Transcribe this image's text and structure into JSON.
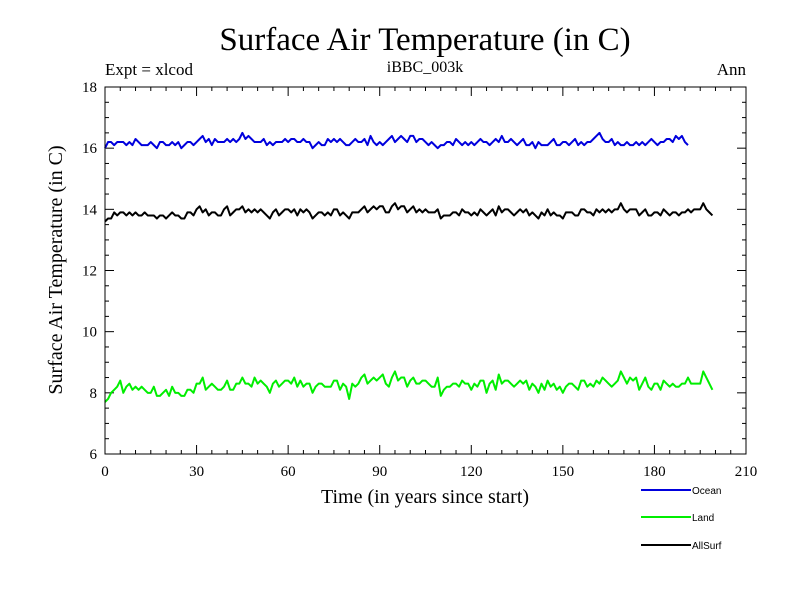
{
  "chart_data": {
    "type": "line",
    "title": "Surface Air Temperature (in C)",
    "subtitle": "iBBC_003k",
    "header_left": "Expt = xlcod",
    "header_right": "Ann",
    "xlabel": "Time (in years since start)",
    "ylabel": "Surface Air Temperature (in C)",
    "xlim": [
      0,
      210
    ],
    "ylim": [
      6,
      18
    ],
    "xticks": [
      "0",
      "30",
      "60",
      "90",
      "120",
      "150",
      "180",
      "210"
    ],
    "yticks": [
      "6",
      "8",
      "10",
      "12",
      "14",
      "16",
      "18"
    ],
    "x_start": 0,
    "x_step": 1,
    "series": [
      {
        "name": "Ocean",
        "color": "#0000dd",
        "values": [
          16.0,
          16.2,
          16.2,
          16.1,
          16.2,
          16.2,
          16.2,
          16.1,
          16.2,
          16.1,
          16.3,
          16.2,
          16.1,
          16.1,
          16.1,
          16.2,
          16.1,
          16.0,
          16.2,
          16.2,
          16.1,
          16.1,
          16.2,
          16.1,
          16.2,
          16.0,
          16.1,
          16.2,
          16.2,
          16.1,
          16.2,
          16.3,
          16.4,
          16.2,
          16.3,
          16.1,
          16.3,
          16.2,
          16.2,
          16.2,
          16.3,
          16.2,
          16.3,
          16.2,
          16.3,
          16.5,
          16.3,
          16.4,
          16.3,
          16.2,
          16.2,
          16.2,
          16.3,
          16.1,
          16.2,
          16.1,
          16.2,
          16.2,
          16.2,
          16.3,
          16.2,
          16.3,
          16.3,
          16.2,
          16.2,
          16.3,
          16.2,
          16.2,
          16.0,
          16.1,
          16.2,
          16.1,
          16.1,
          16.3,
          16.2,
          16.3,
          16.2,
          16.3,
          16.2,
          16.1,
          16.1,
          16.2,
          16.3,
          16.2,
          16.2,
          16.3,
          16.1,
          16.4,
          16.2,
          16.1,
          16.2,
          16.1,
          16.2,
          16.3,
          16.4,
          16.2,
          16.3,
          16.4,
          16.3,
          16.2,
          16.4,
          16.4,
          16.2,
          16.3,
          16.3,
          16.2,
          16.1,
          16.2,
          16.1,
          16.0,
          16.1,
          16.1,
          16.2,
          16.2,
          16.1,
          16.3,
          16.2,
          16.1,
          16.2,
          16.1,
          16.2,
          16.1,
          16.2,
          16.3,
          16.2,
          16.2,
          16.1,
          16.2,
          16.3,
          16.2,
          16.4,
          16.2,
          16.2,
          16.3,
          16.2,
          16.1,
          16.2,
          16.3,
          16.1,
          16.1,
          16.2,
          16.0,
          16.2,
          16.1,
          16.1,
          16.1,
          16.2,
          16.3,
          16.1,
          16.1,
          16.2,
          16.2,
          16.1,
          16.2,
          16.3,
          16.1,
          16.2,
          16.1,
          16.2,
          16.2,
          16.3,
          16.4,
          16.5,
          16.3,
          16.2,
          16.2,
          16.3,
          16.1,
          16.2,
          16.1,
          16.1,
          16.2,
          16.1,
          16.1,
          16.2,
          16.1,
          16.2,
          16.1,
          16.2,
          16.3,
          16.2,
          16.1,
          16.2,
          16.2,
          16.3,
          16.3,
          16.2,
          16.4,
          16.3,
          16.4,
          16.2,
          16.1
        ]
      },
      {
        "name": "Land",
        "color": "#00ee00",
        "values": [
          7.7,
          7.8,
          8.0,
          8.1,
          8.2,
          8.4,
          8.0,
          8.2,
          8.3,
          8.1,
          8.2,
          8.1,
          8.2,
          8.1,
          8.0,
          8.0,
          8.2,
          7.9,
          7.9,
          8.0,
          8.1,
          7.9,
          8.2,
          8.0,
          8.0,
          7.9,
          7.9,
          8.1,
          8.1,
          8.0,
          8.3,
          8.3,
          8.5,
          8.1,
          8.2,
          8.3,
          8.2,
          8.1,
          8.1,
          8.2,
          8.4,
          8.1,
          8.1,
          8.3,
          8.3,
          8.5,
          8.3,
          8.3,
          8.2,
          8.5,
          8.3,
          8.4,
          8.3,
          8.2,
          8.0,
          8.3,
          8.4,
          8.2,
          8.3,
          8.4,
          8.4,
          8.3,
          8.5,
          8.2,
          8.4,
          8.2,
          8.3,
          8.3,
          8.0,
          8.2,
          8.3,
          8.3,
          8.2,
          8.2,
          8.2,
          8.4,
          8.4,
          8.1,
          8.3,
          8.2,
          7.8,
          8.3,
          8.2,
          8.3,
          8.5,
          8.6,
          8.3,
          8.4,
          8.5,
          8.4,
          8.5,
          8.6,
          8.3,
          8.2,
          8.5,
          8.7,
          8.4,
          8.5,
          8.5,
          8.2,
          8.4,
          8.5,
          8.3,
          8.3,
          8.4,
          8.4,
          8.3,
          8.2,
          8.2,
          8.5,
          7.9,
          8.1,
          8.2,
          8.2,
          8.3,
          8.3,
          8.2,
          8.4,
          8.3,
          8.3,
          8.1,
          8.3,
          8.2,
          8.4,
          8.4,
          8.0,
          8.3,
          8.4,
          8.1,
          8.6,
          8.3,
          8.4,
          8.4,
          8.3,
          8.2,
          8.3,
          8.4,
          8.3,
          8.4,
          8.1,
          8.3,
          8.2,
          8.0,
          8.3,
          8.1,
          8.4,
          8.2,
          8.3,
          8.1,
          8.2,
          8.0,
          8.2,
          8.3,
          8.3,
          8.2,
          8.1,
          8.4,
          8.4,
          8.2,
          8.3,
          8.2,
          8.4,
          8.3,
          8.5,
          8.4,
          8.3,
          8.2,
          8.3,
          8.4,
          8.7,
          8.5,
          8.3,
          8.5,
          8.4,
          8.5,
          8.1,
          8.3,
          8.5,
          8.2,
          8.1,
          8.3,
          8.3,
          8.1,
          8.4,
          8.3,
          8.2,
          8.3,
          8.2,
          8.2,
          8.3,
          8.3,
          8.5,
          8.3,
          8.3,
          8.3,
          8.3,
          8.7,
          8.5,
          8.3,
          8.1
        ]
      },
      {
        "name": "AllSurf",
        "color": "#000000",
        "values": [
          13.6,
          13.7,
          13.7,
          13.9,
          13.8,
          13.9,
          13.9,
          13.8,
          13.9,
          13.8,
          13.9,
          13.8,
          13.8,
          13.9,
          13.8,
          13.8,
          13.8,
          13.7,
          13.8,
          13.8,
          13.7,
          13.8,
          13.9,
          13.8,
          13.8,
          13.7,
          13.7,
          13.9,
          13.9,
          13.8,
          14.0,
          14.1,
          13.9,
          14.0,
          13.8,
          13.9,
          13.9,
          13.8,
          13.8,
          14.0,
          14.1,
          13.8,
          13.9,
          14.0,
          14.0,
          14.1,
          13.9,
          14.0,
          13.9,
          14.0,
          13.9,
          14.0,
          13.9,
          13.8,
          13.7,
          13.9,
          14.0,
          13.8,
          13.9,
          14.0,
          14.0,
          13.9,
          14.0,
          13.8,
          14.0,
          13.9,
          14.0,
          13.9,
          13.7,
          13.8,
          13.9,
          13.9,
          13.8,
          13.9,
          13.8,
          14.0,
          14.0,
          13.8,
          13.9,
          13.8,
          13.7,
          13.9,
          13.9,
          13.9,
          14.0,
          14.1,
          13.9,
          14.0,
          14.1,
          14.0,
          14.1,
          14.1,
          13.9,
          13.9,
          14.1,
          14.2,
          14.0,
          14.1,
          14.1,
          13.9,
          14.0,
          14.1,
          13.9,
          14.0,
          13.9,
          14.0,
          13.9,
          13.9,
          13.9,
          14.0,
          13.7,
          13.8,
          13.8,
          13.8,
          13.9,
          13.9,
          13.8,
          14.0,
          13.9,
          13.9,
          13.8,
          13.9,
          13.8,
          14.0,
          13.9,
          13.8,
          13.9,
          14.0,
          13.8,
          14.1,
          13.9,
          14.0,
          14.0,
          13.9,
          13.8,
          13.9,
          14.0,
          13.9,
          14.0,
          13.8,
          13.9,
          13.8,
          13.7,
          13.9,
          13.8,
          14.0,
          13.8,
          13.9,
          13.8,
          13.8,
          13.7,
          13.9,
          13.9,
          13.9,
          13.8,
          13.8,
          14.0,
          14.0,
          13.9,
          13.9,
          13.8,
          14.0,
          13.9,
          14.0,
          13.9,
          14.0,
          13.9,
          14.0,
          14.0,
          14.2,
          14.0,
          13.9,
          14.0,
          14.0,
          14.0,
          13.8,
          13.9,
          14.0,
          13.8,
          13.8,
          13.9,
          13.9,
          13.8,
          14.0,
          13.9,
          13.8,
          13.9,
          13.9,
          13.8,
          13.9,
          13.9,
          14.0,
          13.9,
          14.0,
          14.0,
          14.0,
          14.2,
          14.0,
          13.9,
          13.8
        ]
      }
    ],
    "legend_position": "bottom-right"
  }
}
